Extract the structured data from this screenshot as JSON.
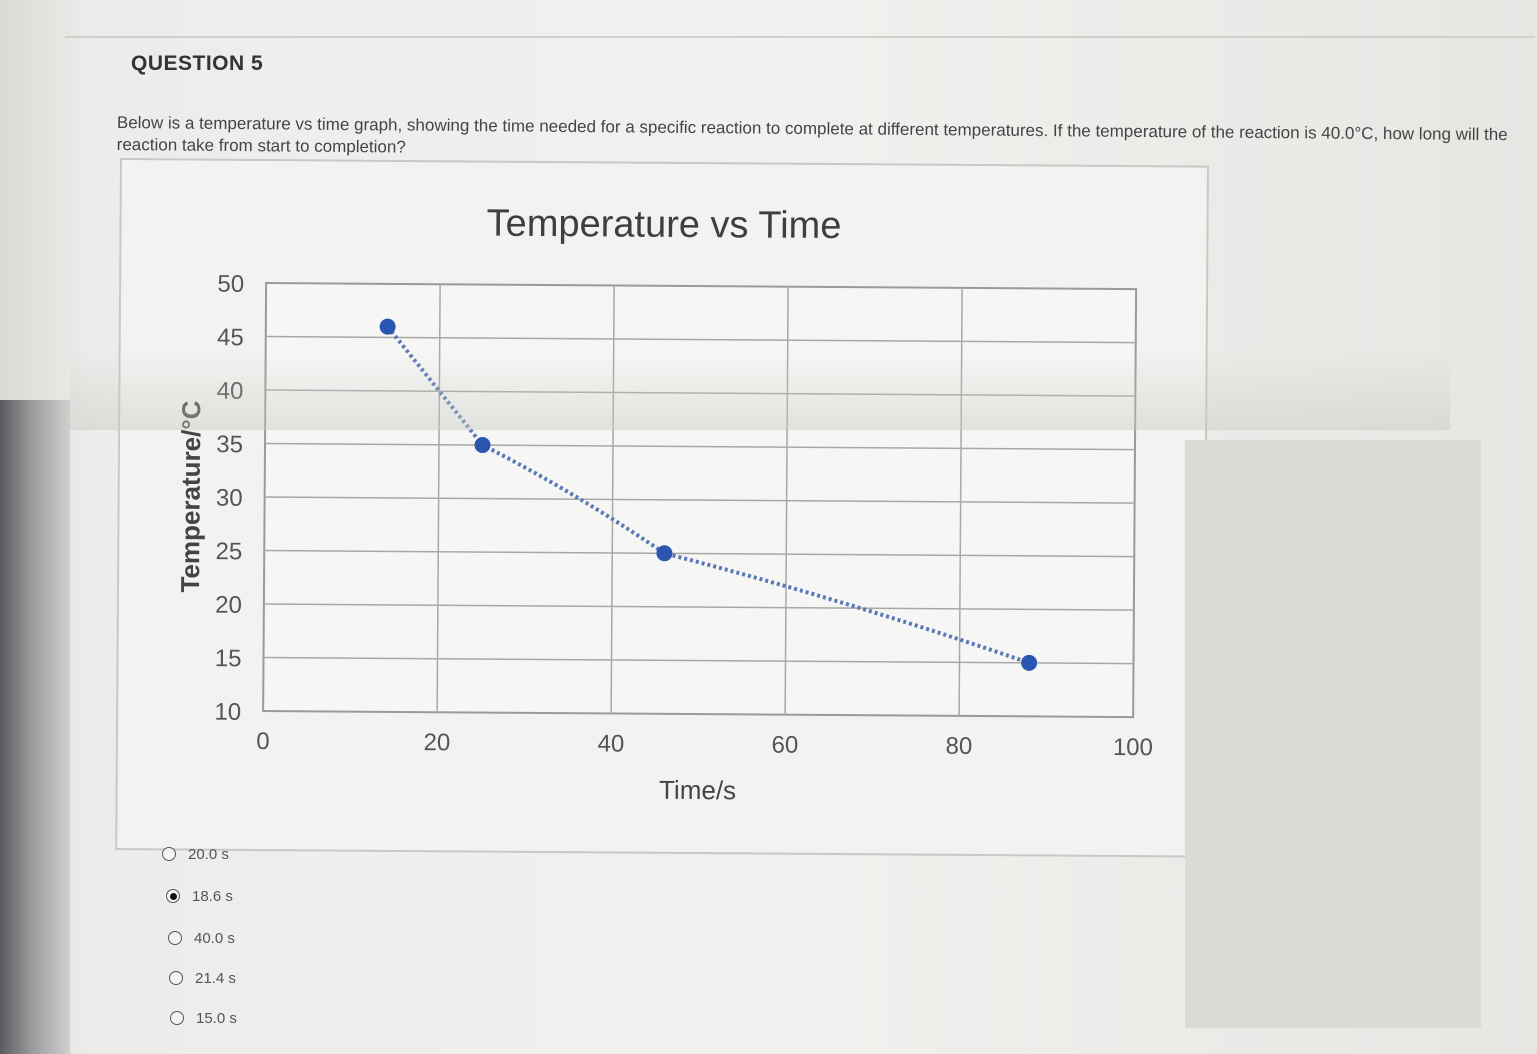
{
  "question": {
    "title": "QUESTION 5",
    "text": "Below is a temperature vs time graph, showing the time needed for a specific reaction to complete at different temperatures. If the temperature of the reaction is 40.0°C, how long will the reaction take from start to completion?"
  },
  "chart_data": {
    "type": "scatter",
    "title": "Temperature vs Time",
    "xlabel": "Time/s",
    "ylabel": "Temperature/°C",
    "xlim": [
      0,
      100
    ],
    "ylim": [
      10,
      50
    ],
    "x_ticks": [
      "0",
      "20",
      "40",
      "60",
      "80",
      "100"
    ],
    "y_ticks": [
      "10",
      "15",
      "20",
      "25",
      "30",
      "35",
      "40",
      "45",
      "50"
    ],
    "grid": true,
    "trendline": "dotted",
    "point_color": "#2b56b0",
    "series": [
      {
        "x": [
          14,
          25,
          46,
          88
        ],
        "y": [
          46,
          35,
          25,
          15
        ]
      }
    ]
  },
  "answers": {
    "options": [
      {
        "label": "20.0 s",
        "selected": false
      },
      {
        "label": "18.6 s",
        "selected": true
      },
      {
        "label": "40.0 s",
        "selected": false
      },
      {
        "label": "21.4 s",
        "selected": false
      },
      {
        "label": "15.0 s",
        "selected": false
      }
    ]
  }
}
